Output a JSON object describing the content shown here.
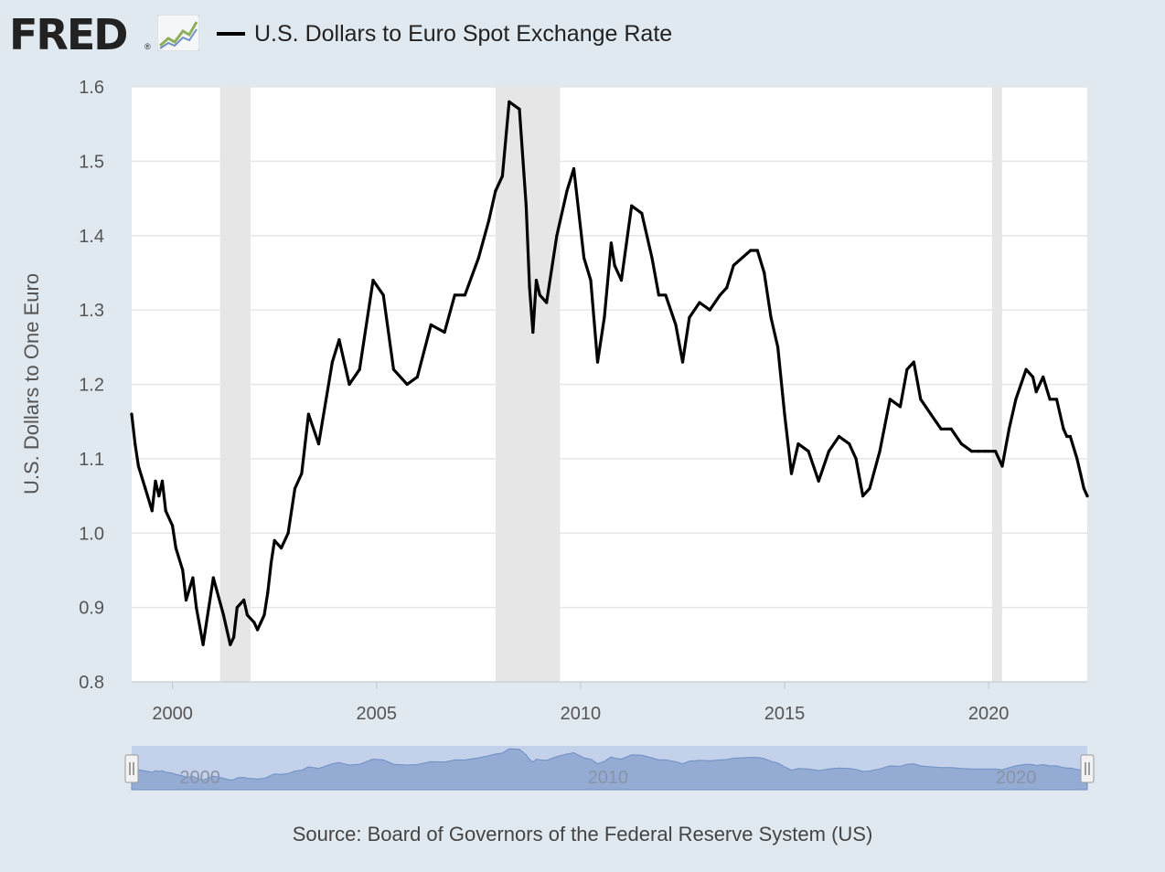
{
  "header": {
    "logo_text": "FRED",
    "logo_mark": "®",
    "series_title": "U.S. Dollars to Euro Spot Exchange Rate"
  },
  "source": "Source: Board of Governors of the Federal Reserve System (US)",
  "colors": {
    "background": "#e1e9f0",
    "plot": "#ffffff",
    "line": "#000000",
    "recession": "#e6e6e6",
    "grid": "#e6e6e6",
    "navigator_fill": "#94abd3",
    "navigator_window": "#c3d1ea"
  },
  "icons": [
    "fred-graph-icon",
    "navigator-handle-left-icon",
    "navigator-handle-right-icon"
  ],
  "chart_data": {
    "type": "line",
    "title": "U.S. Dollars to Euro Spot Exchange Rate",
    "ylabel": "U.S. Dollars to One Euro",
    "xlabel": "",
    "xlim": [
      "1999-01-01",
      "2022-06-01"
    ],
    "ylim": [
      0.8,
      1.6
    ],
    "y_ticks": [
      "0.8",
      "0.9",
      "1.0",
      "1.1",
      "1.2",
      "1.3",
      "1.4",
      "1.5",
      "1.6"
    ],
    "x_ticks": [
      "2000",
      "2005",
      "2010",
      "2015",
      "2020"
    ],
    "grid": true,
    "legend": "top-left",
    "recessions": [
      [
        "2001-03-01",
        "2001-11-30"
      ],
      [
        "2007-12-01",
        "2009-06-30"
      ],
      [
        "2020-02-01",
        "2020-04-30"
      ]
    ],
    "navigator_labels": [
      "2000",
      "2010",
      "2020"
    ],
    "series": [
      {
        "name": "U.S. Dollars to Euro Spot Exchange Rate",
        "x": [
          "1999-01-01",
          "1999-02-01",
          "1999-03-01",
          "1999-05-01",
          "1999-07-01",
          "1999-08-01",
          "1999-09-01",
          "1999-10-01",
          "1999-11-01",
          "2000-01-01",
          "2000-02-01",
          "2000-04-01",
          "2000-05-01",
          "2000-07-01",
          "2000-08-01",
          "2000-10-01",
          "2001-01-01",
          "2001-04-01",
          "2001-06-01",
          "2001-07-01",
          "2001-08-01",
          "2001-10-01",
          "2001-11-01",
          "2002-01-01",
          "2002-02-01",
          "2002-03-01",
          "2002-04-01",
          "2002-05-01",
          "2002-06-01",
          "2002-07-01",
          "2002-09-01",
          "2002-11-01",
          "2003-01-01",
          "2003-03-01",
          "2003-05-01",
          "2003-08-01",
          "2003-12-01",
          "2004-02-01",
          "2004-05-01",
          "2004-08-01",
          "2004-12-01",
          "2005-03-01",
          "2005-06-01",
          "2005-10-01",
          "2006-01-01",
          "2006-05-01",
          "2006-09-01",
          "2006-12-01",
          "2007-03-01",
          "2007-07-01",
          "2007-10-01",
          "2007-12-01",
          "2008-02-01",
          "2008-04-01",
          "2008-07-01",
          "2008-09-01",
          "2008-10-01",
          "2008-11-01",
          "2008-12-01",
          "2009-01-01",
          "2009-03-01",
          "2009-06-01",
          "2009-09-01",
          "2009-11-01",
          "2010-02-01",
          "2010-04-01",
          "2010-06-01",
          "2010-08-01",
          "2010-10-01",
          "2010-11-01",
          "2011-01-01",
          "2011-04-01",
          "2011-07-01",
          "2011-10-01",
          "2011-12-01",
          "2012-02-01",
          "2012-05-01",
          "2012-07-01",
          "2012-09-01",
          "2012-12-01",
          "2013-03-01",
          "2013-06-01",
          "2013-08-01",
          "2013-10-01",
          "2014-03-01",
          "2014-05-01",
          "2014-07-01",
          "2014-09-01",
          "2014-11-01",
          "2015-01-01",
          "2015-03-01",
          "2015-05-01",
          "2015-08-01",
          "2015-11-01",
          "2016-02-01",
          "2016-05-01",
          "2016-08-01",
          "2016-10-01",
          "2016-12-01",
          "2017-02-01",
          "2017-05-01",
          "2017-08-01",
          "2017-11-01",
          "2018-01-01",
          "2018-03-01",
          "2018-05-01",
          "2018-08-01",
          "2018-11-01",
          "2019-02-01",
          "2019-05-01",
          "2019-08-01",
          "2019-10-01",
          "2019-12-01",
          "2020-01-01",
          "2020-03-01",
          "2020-05-01",
          "2020-07-01",
          "2020-09-01",
          "2020-12-01",
          "2021-02-01",
          "2021-03-01",
          "2021-05-01",
          "2021-07-01",
          "2021-09-01",
          "2021-11-01",
          "2021-12-01",
          "2022-01-01",
          "2022-03-01",
          "2022-04-01",
          "2022-05-01",
          "2022-06-01"
        ],
        "y": [
          1.16,
          1.12,
          1.09,
          1.06,
          1.03,
          1.07,
          1.05,
          1.07,
          1.03,
          1.01,
          0.98,
          0.95,
          0.91,
          0.94,
          0.9,
          0.85,
          0.94,
          0.89,
          0.85,
          0.86,
          0.9,
          0.91,
          0.89,
          0.88,
          0.87,
          0.88,
          0.89,
          0.92,
          0.96,
          0.99,
          0.98,
          1.0,
          1.06,
          1.08,
          1.16,
          1.12,
          1.23,
          1.26,
          1.2,
          1.22,
          1.34,
          1.32,
          1.22,
          1.2,
          1.21,
          1.28,
          1.27,
          1.32,
          1.32,
          1.37,
          1.42,
          1.46,
          1.48,
          1.58,
          1.57,
          1.44,
          1.33,
          1.27,
          1.34,
          1.32,
          1.31,
          1.4,
          1.46,
          1.49,
          1.37,
          1.34,
          1.23,
          1.29,
          1.39,
          1.36,
          1.34,
          1.44,
          1.43,
          1.37,
          1.32,
          1.32,
          1.28,
          1.23,
          1.29,
          1.31,
          1.3,
          1.32,
          1.33,
          1.36,
          1.38,
          1.38,
          1.35,
          1.29,
          1.25,
          1.16,
          1.08,
          1.12,
          1.11,
          1.07,
          1.11,
          1.13,
          1.12,
          1.1,
          1.05,
          1.06,
          1.11,
          1.18,
          1.17,
          1.22,
          1.23,
          1.18,
          1.16,
          1.14,
          1.14,
          1.12,
          1.11,
          1.11,
          1.11,
          1.11,
          1.11,
          1.09,
          1.14,
          1.18,
          1.22,
          1.21,
          1.19,
          1.21,
          1.18,
          1.18,
          1.14,
          1.13,
          1.13,
          1.1,
          1.08,
          1.06,
          1.05
        ]
      }
    ]
  }
}
